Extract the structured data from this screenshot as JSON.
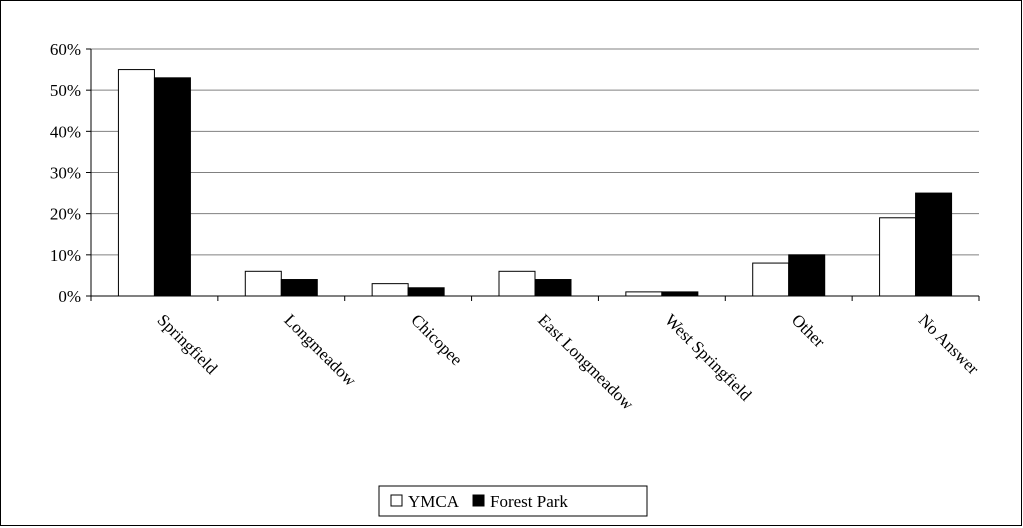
{
  "chart_data": {
    "type": "bar",
    "title": "",
    "xlabel": "",
    "ylabel": "",
    "categories": [
      "Springfield",
      "Longmeadow",
      "Chicopee",
      "East Longmeadow",
      "West Springfield",
      "Other",
      "No Answer"
    ],
    "series": [
      {
        "name": "YMCA",
        "color": "#ffffff",
        "values": [
          55,
          6,
          3,
          6,
          1,
          8,
          19
        ]
      },
      {
        "name": "Forest Park",
        "color": "#000000",
        "values": [
          53,
          4,
          2,
          4,
          1,
          10,
          25
        ]
      }
    ],
    "ylim": [
      0,
      60
    ],
    "yticks": [
      0,
      10,
      20,
      30,
      40,
      50,
      60
    ],
    "ytick_labels": [
      "0%",
      "10%",
      "20%",
      "30%",
      "40%",
      "50%",
      "60%"
    ],
    "grid": true,
    "legend_position": "bottom-center",
    "gridline_color": "#808080"
  }
}
